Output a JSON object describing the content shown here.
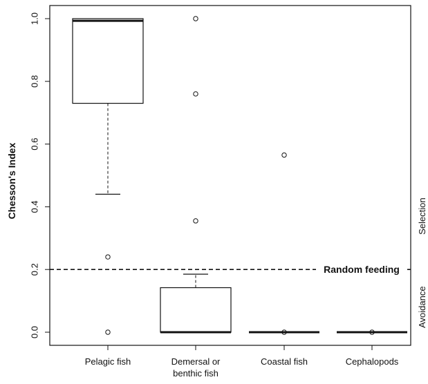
{
  "chart_data": {
    "type": "boxplot",
    "ylabel": "Chesson's Index",
    "ylim": [
      -0.04,
      1.04
    ],
    "yticks": [
      "0.0",
      "0.2",
      "0.4",
      "0.6",
      "0.8",
      "1.0"
    ],
    "ytick_values": [
      0.0,
      0.2,
      0.4,
      0.6,
      0.8,
      1.0
    ],
    "grid": false,
    "categories": [
      [
        "Pelagic fish"
      ],
      [
        "Demersal or",
        "benthic fish"
      ],
      [
        "Coastal fish"
      ],
      [
        "Cephalopods"
      ]
    ],
    "boxes": [
      {
        "whisker_low": 0.44,
        "q1": 0.73,
        "median": 0.993,
        "q3": 1.0,
        "whisker_high": 1.0,
        "outliers": [
          0.24,
          0.0
        ]
      },
      {
        "whisker_low": 0.0,
        "q1": 0.0,
        "median": 0.0,
        "q3": 0.142,
        "whisker_high": 0.185,
        "outliers": [
          1.0,
          0.76,
          0.355
        ]
      },
      {
        "whisker_low": 0.0,
        "q1": 0.0,
        "median": 0.0,
        "q3": 0.0,
        "whisker_high": 0.0,
        "outliers": [
          0.565,
          0.0
        ]
      },
      {
        "whisker_low": 0.0,
        "q1": 0.0,
        "median": 0.0,
        "q3": 0.0,
        "whisker_high": 0.0,
        "outliers": [
          0.0
        ]
      }
    ],
    "reference_line": {
      "value": 0.2,
      "label": "Random feeding"
    },
    "side_labels": {
      "above": "Selection",
      "below": "Avoidance"
    }
  }
}
